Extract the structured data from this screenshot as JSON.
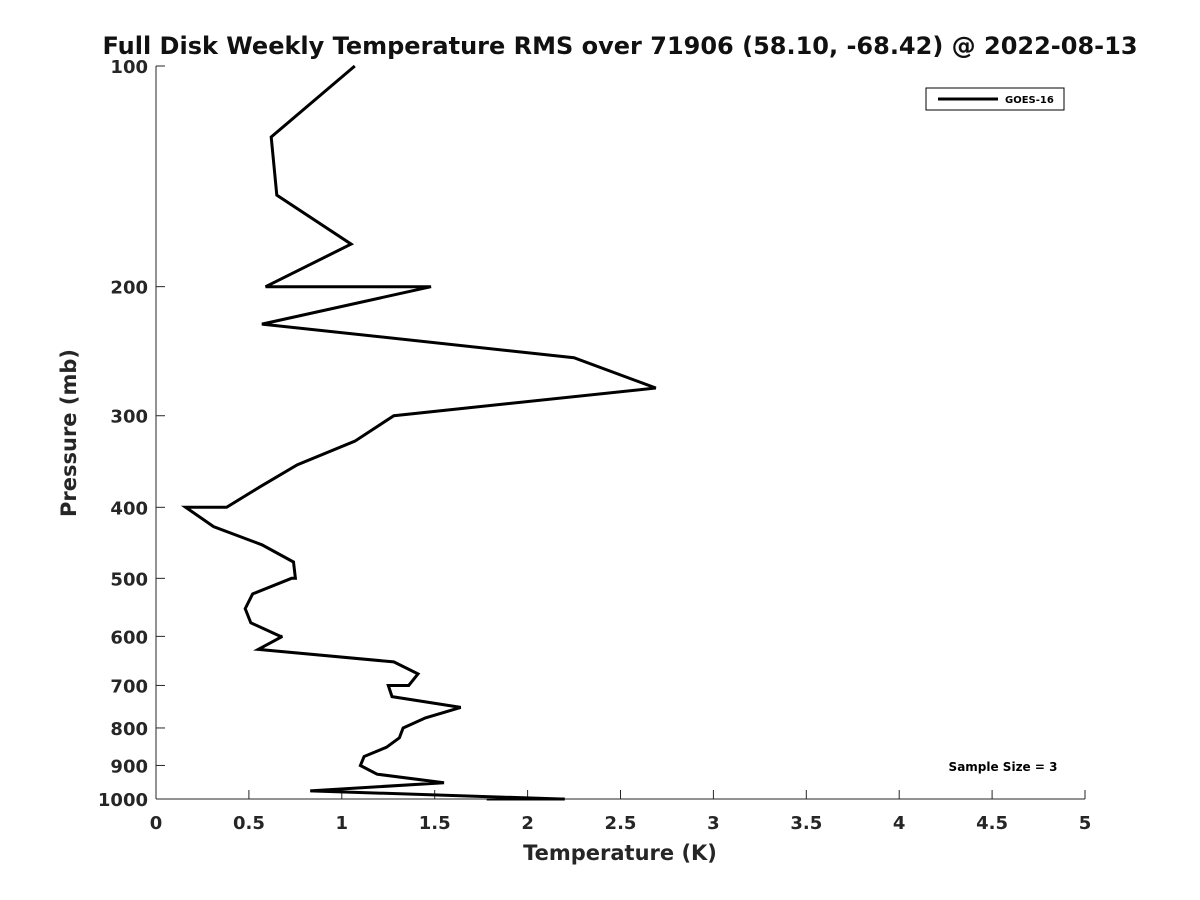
{
  "chart_data": {
    "type": "line",
    "title": "Full Disk Weekly Temperature RMS over 71906 (58.10, -68.42) @ 2022-08-13",
    "xlabel": "Temperature (K)",
    "ylabel": "Pressure (mb)",
    "xlim": [
      0,
      5
    ],
    "ylim": [
      100,
      1000
    ],
    "y_scale": "log",
    "y_reversed": true,
    "x_ticks": [
      "0",
      "0.5",
      "1",
      "1.5",
      "2",
      "2.5",
      "3",
      "3.5",
      "4",
      "4.5",
      "5"
    ],
    "y_ticks": [
      "100",
      "200",
      "300",
      "400",
      "500",
      "600",
      "700",
      "800",
      "900",
      "1000"
    ],
    "grid": false,
    "legend_position": "top-right",
    "series": [
      {
        "name": "GOES-16",
        "color": "#000000",
        "points": [
          [
            1.07,
            100
          ],
          [
            0.62,
            125
          ],
          [
            0.65,
            150
          ],
          [
            1.05,
            175
          ],
          [
            0.59,
            200
          ],
          [
            1.48,
            200
          ],
          [
            0.57,
            225
          ],
          [
            2.25,
            250
          ],
          [
            2.69,
            275
          ],
          [
            1.28,
            300
          ],
          [
            1.07,
            325
          ],
          [
            0.76,
            350
          ],
          [
            0.56,
            375
          ],
          [
            0.38,
            400
          ],
          [
            0.16,
            400
          ],
          [
            0.31,
            425
          ],
          [
            0.57,
            450
          ],
          [
            0.74,
            475
          ],
          [
            0.75,
            500
          ],
          [
            0.73,
            500
          ],
          [
            0.52,
            525
          ],
          [
            0.48,
            550
          ],
          [
            0.51,
            575
          ],
          [
            0.67,
            600
          ],
          [
            0.68,
            600
          ],
          [
            0.55,
            625
          ],
          [
            1.28,
            650
          ],
          [
            1.41,
            675
          ],
          [
            1.36,
            700
          ],
          [
            1.25,
            700
          ],
          [
            1.27,
            725
          ],
          [
            1.64,
            750
          ],
          [
            1.45,
            775
          ],
          [
            1.33,
            800
          ],
          [
            1.31,
            825
          ],
          [
            1.24,
            850
          ],
          [
            1.12,
            875
          ],
          [
            1.1,
            900
          ],
          [
            1.19,
            925
          ],
          [
            1.55,
            950
          ],
          [
            0.83,
            975
          ],
          [
            2.18,
            1000
          ],
          [
            1.78,
            1000
          ],
          [
            2.2,
            1000
          ]
        ]
      }
    ],
    "annotation": "Sample Size = 3"
  }
}
